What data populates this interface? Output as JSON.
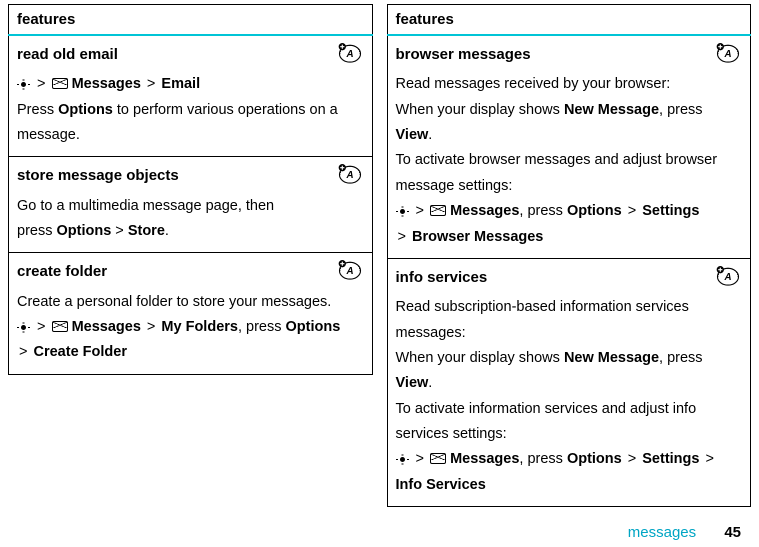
{
  "header": "features",
  "footer": {
    "label": "messages",
    "page": "45"
  },
  "accent_color": "#00c4d6",
  "left": [
    {
      "title": "read old email",
      "icon": true,
      "lines": [
        {
          "type": "path",
          "segments": [
            "nav",
            " > ",
            "mail",
            " ",
            {
              "b": "Messages"
            },
            " > ",
            {
              "b": "Email"
            }
          ]
        },
        {
          "type": "text",
          "pre": "Press ",
          "b": "Options",
          "post": " to perform various operations on a message."
        }
      ]
    },
    {
      "title": "store message objects",
      "icon": true,
      "lines": [
        {
          "type": "plain",
          "text": "Go to a multimedia message page, then"
        },
        {
          "type": "text",
          "pre": "press ",
          "b": "Options",
          "mid": " > ",
          "b2": "Store",
          "post": "."
        }
      ]
    },
    {
      "title": "create folder",
      "icon": true,
      "lines": [
        {
          "type": "plain",
          "text": "Create a personal folder to store your messages."
        },
        {
          "type": "path",
          "segments": [
            "nav",
            " > ",
            "mail",
            " ",
            {
              "b": "Messages"
            },
            " > ",
            {
              "b": "My Folders"
            },
            ", press ",
            {
              "b": "Options"
            }
          ]
        },
        {
          "type": "cont",
          "segments": [
            "> ",
            {
              "b": "Create Folder"
            }
          ]
        }
      ]
    }
  ],
  "right": [
    {
      "title": "browser messages",
      "icon": true,
      "lines": [
        {
          "type": "plain",
          "text": "Read messages received by your browser:"
        },
        {
          "type": "text",
          "pre": "When your display shows ",
          "b": "New Message",
          "mid": ", press ",
          "b2": "View",
          "post": "."
        },
        {
          "type": "plain",
          "text": "To activate browser messages and adjust browser message settings:"
        },
        {
          "type": "path",
          "segments": [
            "nav",
            " > ",
            "mail",
            " ",
            {
              "b": "Messages"
            },
            ", press ",
            {
              "b": "Options"
            },
            " > ",
            {
              "b": "Settings"
            }
          ]
        },
        {
          "type": "cont",
          "segments": [
            "> ",
            {
              "b": "Browser Messages"
            }
          ]
        }
      ]
    },
    {
      "title": "info services",
      "icon": true,
      "lines": [
        {
          "type": "plain",
          "text": "Read subscription-based information services messages:"
        },
        {
          "type": "text",
          "pre": "When your display shows ",
          "b": "New Message",
          "mid": ", press ",
          "b2": "View",
          "post": "."
        },
        {
          "type": "plain",
          "text": "To activate information services and adjust info services settings:"
        },
        {
          "type": "path",
          "segments": [
            "nav",
            " > ",
            "mail",
            " ",
            {
              "b": "Messages"
            },
            ", press ",
            {
              "b": "Options"
            },
            " > ",
            {
              "b": "Settings"
            },
            " > ",
            {
              "b": "Info Services"
            }
          ]
        }
      ]
    }
  ]
}
